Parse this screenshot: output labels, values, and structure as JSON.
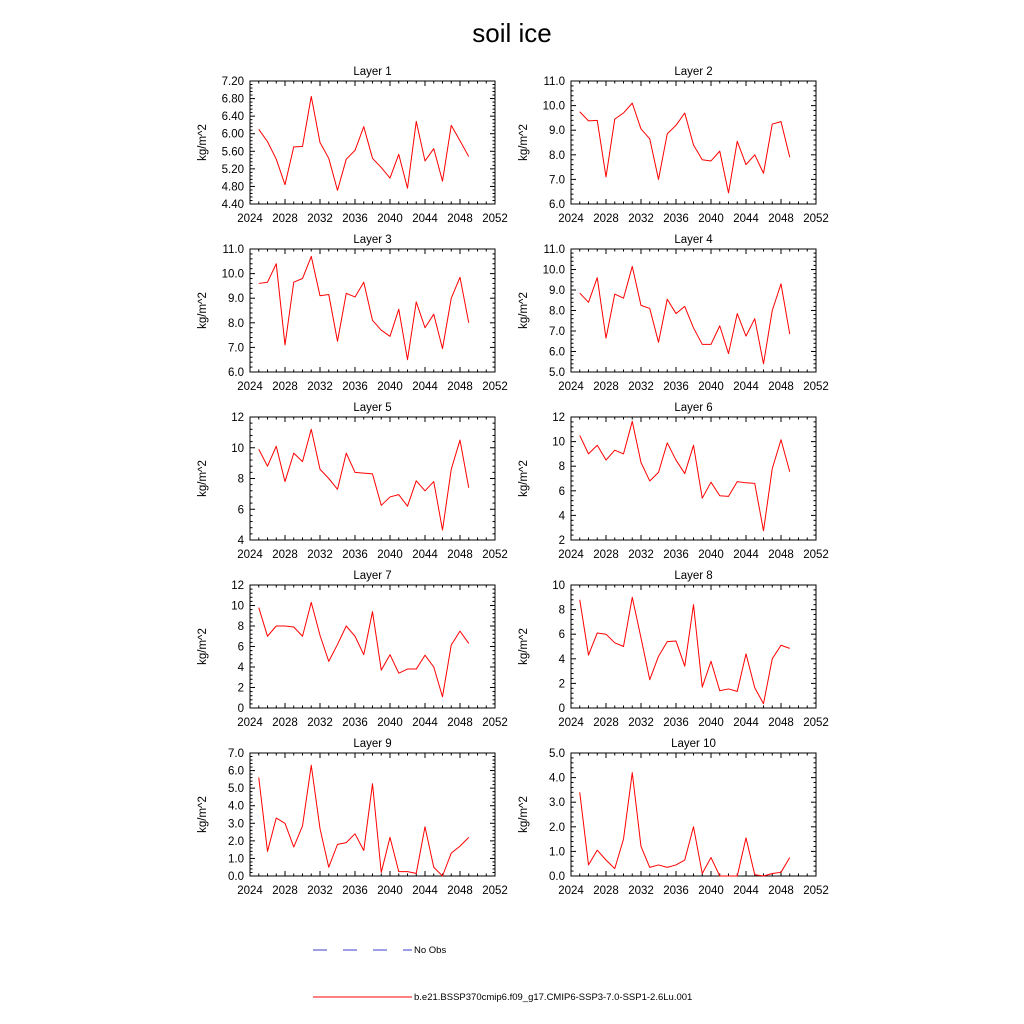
{
  "figure_title": "soil ice",
  "legend": {
    "no_obs_label": "No Obs",
    "no_obs_color": "#3c3ccc",
    "model_label": "b.e21.BSSP370cmip6.f09_g17.CMIP6-SSP3-7.0-SSP1-2.6Lu.001",
    "model_color": "#ff0000"
  },
  "chart_data": [
    {
      "type": "line",
      "title": "Layer 1",
      "xlabel": "",
      "ylabel": "kg/m^2",
      "xlim": [
        2024,
        2052
      ],
      "xticks": [
        "2024",
        "2028",
        "2032",
        "2036",
        "2040",
        "2044",
        "2048",
        "2052"
      ],
      "ylim": [
        4.4,
        7.2
      ],
      "yticks": [
        "4.40",
        "4.80",
        "5.20",
        "5.60",
        "6.00",
        "6.40",
        "6.80",
        "7.20"
      ],
      "x": [
        2025,
        2026,
        2027,
        2028,
        2029,
        2030,
        2031,
        2032,
        2033,
        2034,
        2035,
        2036,
        2037,
        2038,
        2039,
        2040,
        2041,
        2042,
        2043,
        2044,
        2045,
        2046,
        2047,
        2048,
        2049
      ],
      "series": [
        {
          "values": [
            6.1,
            5.82,
            5.42,
            4.84,
            5.7,
            5.71,
            6.85,
            5.8,
            5.44,
            4.71,
            5.42,
            5.62,
            6.16,
            5.44,
            5.23,
            4.99,
            5.53,
            4.76,
            6.28,
            5.38,
            5.66,
            4.92,
            6.19,
            5.84,
            5.48
          ]
        }
      ]
    },
    {
      "type": "line",
      "title": "Layer 2",
      "xlabel": "",
      "ylabel": "kg/m^2",
      "xlim": [
        2024,
        2052
      ],
      "xticks": [
        "2024",
        "2028",
        "2032",
        "2036",
        "2040",
        "2044",
        "2048",
        "2052"
      ],
      "ylim": [
        6.0,
        11.0
      ],
      "yticks": [
        "6.0",
        "7.0",
        "8.0",
        "9.0",
        "10.0",
        "11.0"
      ],
      "x": [
        2025,
        2026,
        2027,
        2028,
        2029,
        2030,
        2031,
        2032,
        2033,
        2034,
        2035,
        2036,
        2037,
        2038,
        2039,
        2040,
        2041,
        2042,
        2043,
        2044,
        2045,
        2046,
        2047,
        2048,
        2049
      ],
      "series": [
        {
          "values": [
            9.75,
            9.38,
            9.4,
            7.1,
            9.45,
            9.7,
            10.1,
            9.05,
            8.65,
            7.0,
            8.85,
            9.2,
            9.7,
            8.4,
            7.8,
            7.75,
            8.15,
            6.45,
            8.55,
            7.6,
            8.0,
            7.25,
            9.25,
            9.35,
            7.9
          ]
        }
      ]
    },
    {
      "type": "line",
      "title": "Layer 3",
      "xlabel": "",
      "ylabel": "kg/m^2",
      "xlim": [
        2024,
        2052
      ],
      "xticks": [
        "2024",
        "2028",
        "2032",
        "2036",
        "2040",
        "2044",
        "2048",
        "2052"
      ],
      "ylim": [
        6.0,
        11.0
      ],
      "yticks": [
        "6.0",
        "7.0",
        "8.0",
        "9.0",
        "10.0",
        "11.0"
      ],
      "x": [
        2025,
        2026,
        2027,
        2028,
        2029,
        2030,
        2031,
        2032,
        2033,
        2034,
        2035,
        2036,
        2037,
        2038,
        2039,
        2040,
        2041,
        2042,
        2043,
        2044,
        2045,
        2046,
        2047,
        2048,
        2049
      ],
      "series": [
        {
          "values": [
            9.6,
            9.65,
            10.4,
            7.1,
            9.65,
            9.8,
            10.7,
            9.1,
            9.15,
            7.25,
            9.2,
            9.05,
            9.65,
            8.1,
            7.7,
            7.45,
            8.55,
            6.5,
            8.85,
            7.8,
            8.35,
            6.95,
            9.0,
            9.85,
            8.0
          ]
        }
      ]
    },
    {
      "type": "line",
      "title": "Layer 4",
      "xlabel": "",
      "ylabel": "kg/m^2",
      "xlim": [
        2024,
        2052
      ],
      "xticks": [
        "2024",
        "2028",
        "2032",
        "2036",
        "2040",
        "2044",
        "2048",
        "2052"
      ],
      "ylim": [
        5.0,
        11.0
      ],
      "yticks": [
        "5.0",
        "6.0",
        "7.0",
        "8.0",
        "9.0",
        "10.0",
        "11.0"
      ],
      "x": [
        2025,
        2026,
        2027,
        2028,
        2029,
        2030,
        2031,
        2032,
        2033,
        2034,
        2035,
        2036,
        2037,
        2038,
        2039,
        2040,
        2041,
        2042,
        2043,
        2044,
        2045,
        2046,
        2047,
        2048,
        2049
      ],
      "series": [
        {
          "values": [
            8.85,
            8.4,
            9.6,
            6.65,
            8.8,
            8.6,
            10.15,
            8.25,
            8.1,
            6.45,
            8.55,
            7.85,
            8.2,
            7.15,
            6.35,
            6.35,
            7.25,
            5.9,
            7.85,
            6.75,
            7.6,
            5.4,
            8.0,
            9.3,
            6.85
          ]
        }
      ]
    },
    {
      "type": "line",
      "title": "Layer 5",
      "xlabel": "",
      "ylabel": "kg/m^2",
      "xlim": [
        2024,
        2052
      ],
      "xticks": [
        "2024",
        "2028",
        "2032",
        "2036",
        "2040",
        "2044",
        "2048",
        "2052"
      ],
      "ylim": [
        4,
        12
      ],
      "yticks": [
        "4",
        "6",
        "8",
        "10",
        "12"
      ],
      "x": [
        2025,
        2026,
        2027,
        2028,
        2029,
        2030,
        2031,
        2032,
        2033,
        2034,
        2035,
        2036,
        2037,
        2038,
        2039,
        2040,
        2041,
        2042,
        2043,
        2044,
        2045,
        2046,
        2047,
        2048,
        2049
      ],
      "series": [
        {
          "values": [
            9.9,
            8.8,
            10.1,
            7.8,
            9.65,
            9.1,
            11.2,
            8.6,
            8.0,
            7.3,
            9.65,
            8.4,
            8.35,
            8.3,
            6.25,
            6.8,
            6.95,
            6.2,
            7.85,
            7.2,
            7.8,
            4.65,
            8.6,
            10.5,
            7.4
          ]
        }
      ]
    },
    {
      "type": "line",
      "title": "Layer 6",
      "xlabel": "",
      "ylabel": "kg/m^2",
      "xlim": [
        2024,
        2052
      ],
      "xticks": [
        "2024",
        "2028",
        "2032",
        "2036",
        "2040",
        "2044",
        "2048",
        "2052"
      ],
      "ylim": [
        2,
        12
      ],
      "yticks": [
        "2",
        "4",
        "6",
        "8",
        "10",
        "12"
      ],
      "x": [
        2025,
        2026,
        2027,
        2028,
        2029,
        2030,
        2031,
        2032,
        2033,
        2034,
        2035,
        2036,
        2037,
        2038,
        2039,
        2040,
        2041,
        2042,
        2043,
        2044,
        2045,
        2046,
        2047,
        2048,
        2049
      ],
      "series": [
        {
          "values": [
            10.5,
            9.0,
            9.7,
            8.5,
            9.3,
            9.0,
            11.65,
            8.3,
            6.8,
            7.5,
            9.9,
            8.5,
            7.4,
            9.7,
            5.4,
            6.7,
            5.6,
            5.55,
            6.75,
            6.65,
            6.6,
            2.75,
            7.8,
            10.15,
            7.55
          ]
        }
      ]
    },
    {
      "type": "line",
      "title": "Layer 7",
      "xlabel": "",
      "ylabel": "kg/m^2",
      "xlim": [
        2024,
        2052
      ],
      "xticks": [
        "2024",
        "2028",
        "2032",
        "2036",
        "2040",
        "2044",
        "2048",
        "2052"
      ],
      "ylim": [
        0,
        12
      ],
      "yticks": [
        "0",
        "2",
        "4",
        "6",
        "8",
        "10",
        "12"
      ],
      "x": [
        2025,
        2026,
        2027,
        2028,
        2029,
        2030,
        2031,
        2032,
        2033,
        2034,
        2035,
        2036,
        2037,
        2038,
        2039,
        2040,
        2041,
        2042,
        2043,
        2044,
        2045,
        2046,
        2047,
        2048,
        2049
      ],
      "series": [
        {
          "values": [
            9.8,
            7.0,
            8.0,
            8.0,
            7.9,
            7.0,
            10.3,
            7.1,
            4.55,
            6.2,
            8.0,
            7.0,
            5.2,
            9.4,
            3.7,
            5.2,
            3.4,
            3.8,
            3.8,
            5.15,
            4.0,
            1.1,
            6.15,
            7.5,
            6.3
          ]
        }
      ]
    },
    {
      "type": "line",
      "title": "Layer 8",
      "xlabel": "",
      "ylabel": "kg/m^2",
      "xlim": [
        2024,
        2052
      ],
      "xticks": [
        "2024",
        "2028",
        "2032",
        "2036",
        "2040",
        "2044",
        "2048",
        "2052"
      ],
      "ylim": [
        0,
        10
      ],
      "yticks": [
        "0",
        "2",
        "4",
        "6",
        "8",
        "10"
      ],
      "x": [
        2025,
        2026,
        2027,
        2028,
        2029,
        2030,
        2031,
        2032,
        2033,
        2034,
        2035,
        2036,
        2037,
        2038,
        2039,
        2040,
        2041,
        2042,
        2043,
        2044,
        2045,
        2046,
        2047,
        2048,
        2049
      ],
      "series": [
        {
          "values": [
            8.8,
            4.3,
            6.1,
            6.0,
            5.3,
            5.0,
            9.0,
            5.7,
            2.3,
            4.2,
            5.4,
            5.45,
            3.4,
            8.4,
            1.7,
            3.8,
            1.4,
            1.55,
            1.35,
            4.4,
            1.65,
            0.35,
            4.0,
            5.1,
            4.85
          ]
        }
      ]
    },
    {
      "type": "line",
      "title": "Layer 9",
      "xlabel": "",
      "ylabel": "kg/m^2",
      "xlim": [
        2024,
        2052
      ],
      "xticks": [
        "2024",
        "2028",
        "2032",
        "2036",
        "2040",
        "2044",
        "2048",
        "2052"
      ],
      "ylim": [
        0,
        7
      ],
      "yticks": [
        "0.0",
        "1.0",
        "2.0",
        "3.0",
        "4.0",
        "5.0",
        "6.0",
        "7.0"
      ],
      "x": [
        2025,
        2026,
        2027,
        2028,
        2029,
        2030,
        2031,
        2032,
        2033,
        2034,
        2035,
        2036,
        2037,
        2038,
        2039,
        2040,
        2041,
        2042,
        2043,
        2044,
        2045,
        2046,
        2047,
        2048,
        2049
      ],
      "series": [
        {
          "values": [
            5.6,
            1.4,
            3.3,
            3.0,
            1.65,
            2.85,
            6.3,
            2.7,
            0.5,
            1.8,
            1.9,
            2.4,
            1.45,
            5.25,
            0.2,
            2.2,
            0.25,
            0.25,
            0.15,
            2.8,
            0.5,
            0.0,
            1.3,
            1.7,
            2.2
          ]
        }
      ]
    },
    {
      "type": "line",
      "title": "Layer 10",
      "xlabel": "",
      "ylabel": "kg/m^2",
      "xlim": [
        2024,
        2052
      ],
      "xticks": [
        "2024",
        "2028",
        "2032",
        "2036",
        "2040",
        "2044",
        "2048",
        "2052"
      ],
      "ylim": [
        0,
        5
      ],
      "yticks": [
        "0.0",
        "1.0",
        "2.0",
        "3.0",
        "4.0",
        "5.0"
      ],
      "x": [
        2025,
        2026,
        2027,
        2028,
        2029,
        2030,
        2031,
        2032,
        2033,
        2034,
        2035,
        2036,
        2037,
        2038,
        2039,
        2040,
        2041,
        2042,
        2043,
        2044,
        2045,
        2046,
        2047,
        2048,
        2049
      ],
      "series": [
        {
          "values": [
            3.4,
            0.45,
            1.05,
            0.65,
            0.3,
            1.5,
            4.2,
            1.2,
            0.35,
            0.45,
            0.35,
            0.45,
            0.65,
            2.0,
            0.1,
            0.75,
            0.0,
            0.0,
            0.0,
            1.55,
            0.05,
            0.0,
            0.1,
            0.15,
            0.75
          ]
        }
      ]
    }
  ]
}
